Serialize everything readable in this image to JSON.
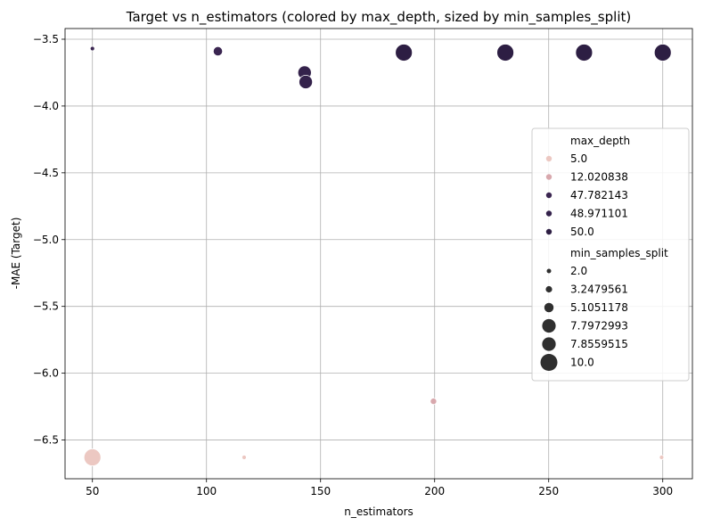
{
  "chart_data": {
    "type": "scatter",
    "title": "Target vs n_estimators (colored by max_depth, sized by min_samples_split)",
    "xlabel": "n_estimators",
    "ylabel": "-MAE (Target)",
    "xlim": [
      38,
      313
    ],
    "ylim": [
      -6.79,
      -3.42
    ],
    "xticks": [
      50,
      100,
      150,
      200,
      250,
      300
    ],
    "xtick_labels": [
      "50",
      "100",
      "150",
      "200",
      "250",
      "300"
    ],
    "yticks": [
      -3.5,
      -4.0,
      -4.5,
      -5.0,
      -5.5,
      -6.0,
      -6.5
    ],
    "ytick_labels": [
      "−3.5",
      "−4.0",
      "−4.5",
      "−5.0",
      "−5.5",
      "−6.0",
      "−6.5"
    ],
    "grid": true,
    "legend_position": "center-right",
    "points": [
      {
        "x": 50,
        "y": -3.57,
        "max_depth": 47.782143,
        "min_samples_split": 2.0
      },
      {
        "x": 105,
        "y": -3.59,
        "max_depth": 47.782143,
        "min_samples_split": 5.1051178
      },
      {
        "x": 143,
        "y": -3.75,
        "max_depth": 48.971101,
        "min_samples_split": 7.7972993
      },
      {
        "x": 143.5,
        "y": -3.82,
        "max_depth": 48.971101,
        "min_samples_split": 7.7972993
      },
      {
        "x": 186.5,
        "y": -3.6,
        "max_depth": 50.0,
        "min_samples_split": 10.0
      },
      {
        "x": 231,
        "y": -3.6,
        "max_depth": 50.0,
        "min_samples_split": 10.0
      },
      {
        "x": 265.5,
        "y": -3.6,
        "max_depth": 50.0,
        "min_samples_split": 10.0
      },
      {
        "x": 300,
        "y": -3.6,
        "max_depth": 50.0,
        "min_samples_split": 10.0
      },
      {
        "x": 50,
        "y": -6.63,
        "max_depth": 5.0,
        "min_samples_split": 10.0
      },
      {
        "x": 116.5,
        "y": -6.63,
        "max_depth": 5.0,
        "min_samples_split": 2.0
      },
      {
        "x": 199.5,
        "y": -6.21,
        "max_depth": 12.020838,
        "min_samples_split": 3.2479561
      },
      {
        "x": 299.5,
        "y": -6.63,
        "max_depth": 5.0,
        "min_samples_split": 2.0
      }
    ],
    "legend": {
      "hue_title": "max_depth",
      "hue_entries": [
        {
          "label": "5.0",
          "color": "#ecc8c2"
        },
        {
          "label": "12.020838",
          "color": "#d8a8ad"
        },
        {
          "label": "47.782143",
          "color": "#3b2651"
        },
        {
          "label": "48.971101",
          "color": "#34224b"
        },
        {
          "label": "50.0",
          "color": "#2d1e43"
        }
      ],
      "size_title": "min_samples_split",
      "size_entries": [
        {
          "label": "2.0",
          "value": 2.0
        },
        {
          "label": "3.2479561",
          "value": 3.2479561
        },
        {
          "label": "5.1051178",
          "value": 5.1051178
        },
        {
          "label": "7.7972993",
          "value": 7.7972993
        },
        {
          "label": "7.8559515",
          "value": 7.8559515
        },
        {
          "label": "10.0",
          "value": 10.0
        }
      ],
      "size_marker_color": "#2f2f2f"
    },
    "colors": {
      "grid": "#b0b0b0",
      "axes": "#000000",
      "legend_border": "#cccccc"
    }
  }
}
